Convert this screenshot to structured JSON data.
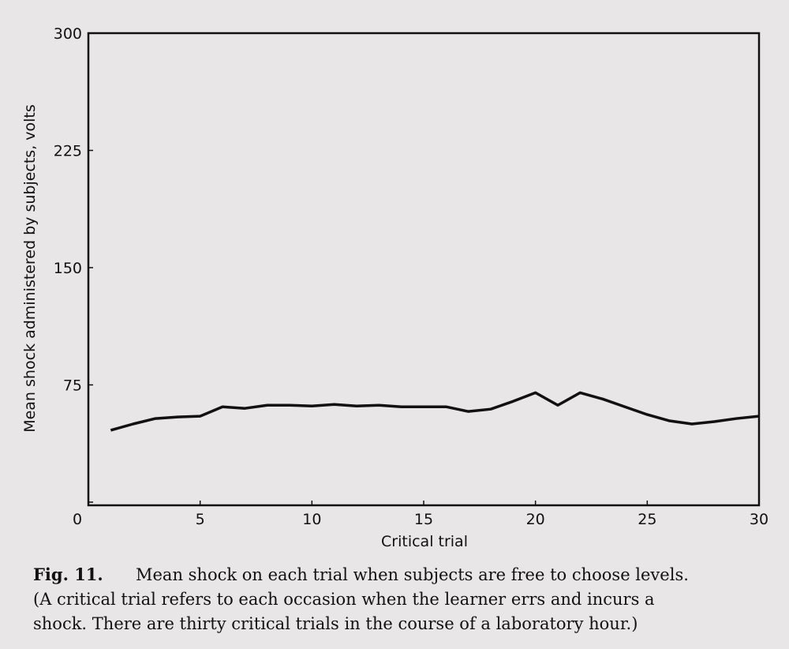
{
  "chart_data": {
    "type": "line",
    "y_label": "Mean shock administered by subjects, volts",
    "x_label": "Critical trial",
    "x": [
      1,
      2,
      3,
      4,
      5,
      6,
      7,
      8,
      9,
      10,
      11,
      12,
      13,
      14,
      15,
      16,
      17,
      18,
      19,
      20,
      21,
      22,
      23,
      24,
      25,
      26,
      27,
      28,
      29,
      30
    ],
    "series": [
      {
        "color": "#111111",
        "values": [
          46,
          50,
          53.5,
          54.5,
          55,
          61,
          60,
          62,
          62,
          61.5,
          62.5,
          61.5,
          62,
          61,
          61,
          61,
          58,
          59.5,
          64.5,
          70,
          62,
          70,
          66,
          61,
          56,
          52,
          50,
          51.5,
          53.5,
          55
        ]
      }
    ],
    "xlim": [
      0,
      30
    ],
    "xticks": [
      0,
      5,
      10,
      15,
      20,
      25,
      30
    ],
    "ylim": [
      0,
      300
    ],
    "yticks": [
      0,
      75,
      150,
      225,
      300
    ],
    "grid": false,
    "caption_label": "Fig. 11.",
    "caption_lines": [
      "Mean shock on each trial when subjects are free to choose levels.",
      "(A critical trial refers to each occasion when the learner errs and incurs a",
      "shock. There are thirty critical trials in the course of a laboratory hour.)"
    ]
  }
}
